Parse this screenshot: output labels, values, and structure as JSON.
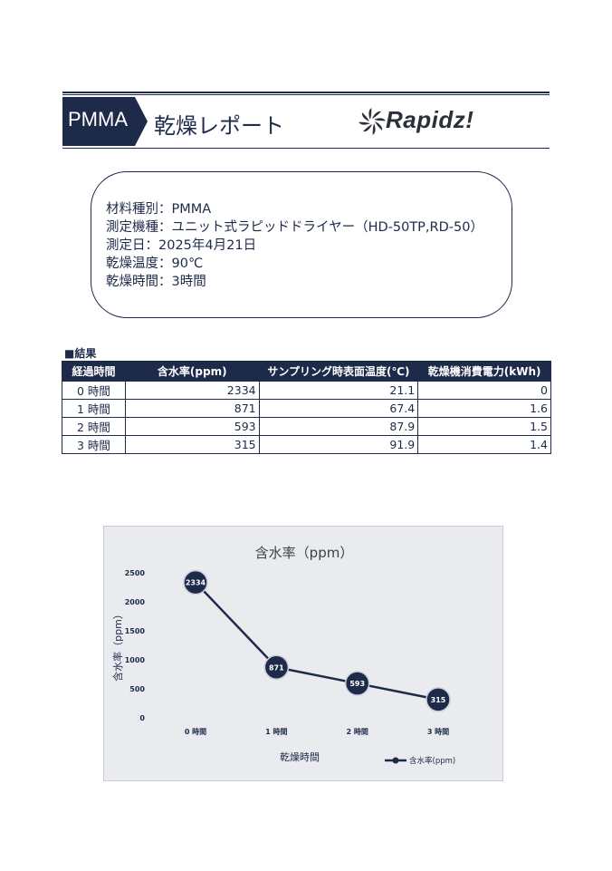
{
  "header": {
    "tag": "PMMA",
    "title": "乾燥レポート",
    "logo_text": "Rapidz!",
    "accent_color": "#1e2a4a"
  },
  "info": {
    "lines": [
      "材料種別：PMMA",
      "測定機種：ユニット式ラピッドドライヤー（HD-50TP,RD-50）",
      "測定日：2025年4月21日",
      "乾燥温度：90℃",
      "乾燥時間：3時間"
    ]
  },
  "results": {
    "label": "■結果",
    "headers": [
      "経過時間",
      "含水率(ppm)",
      "サンプリング時表面温度(℃)",
      "乾燥機消費電力(kWh)"
    ],
    "rows": [
      [
        "0 時間",
        "2334",
        "21.1",
        "0"
      ],
      [
        "1 時間",
        "871",
        "67.4",
        "1.6"
      ],
      [
        "2 時間",
        "593",
        "87.9",
        "1.5"
      ],
      [
        "3 時間",
        "315",
        "91.9",
        "1.4"
      ]
    ]
  },
  "chart_data": {
    "type": "line",
    "title": "含水率（ppm）",
    "xlabel": "乾燥時間",
    "ylabel": "含水率（ppm）",
    "categories": [
      "0 時間",
      "1 時間",
      "2 時間",
      "3 時間"
    ],
    "series": [
      {
        "name": "含水率(ppm)",
        "values": [
          2334,
          871,
          593,
          315
        ]
      }
    ],
    "ylim": [
      0,
      2500
    ],
    "yticks": [
      0,
      500,
      1000,
      1500,
      2000,
      2500
    ],
    "grid": false,
    "legend": "bottom-right",
    "line_color": "#1e2a4a"
  }
}
